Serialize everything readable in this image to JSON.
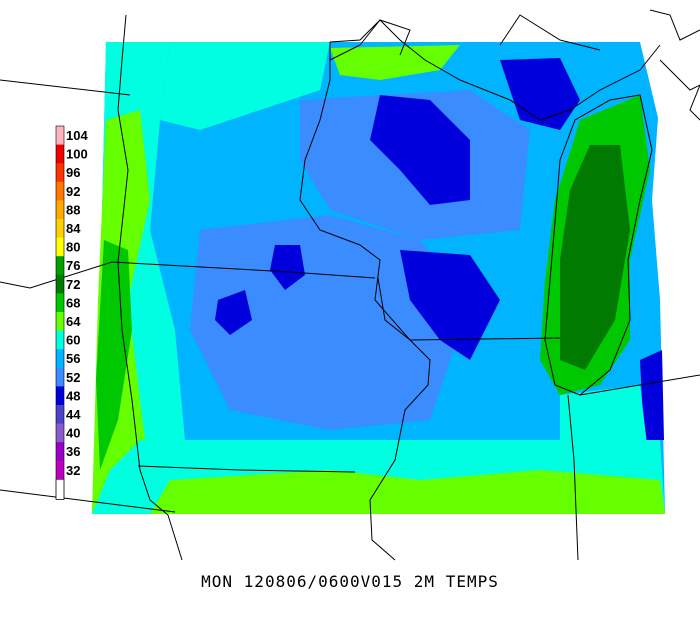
{
  "caption": "MON 120806/0600V015 2M TEMPS",
  "legend": {
    "levels": [
      {
        "label": "104",
        "color": "#ffb3c1"
      },
      {
        "label": "100",
        "color": "#ee0000"
      },
      {
        "label": "96",
        "color": "#ff3300"
      },
      {
        "label": "92",
        "color": "#ff7700"
      },
      {
        "label": "88",
        "color": "#ffaa00"
      },
      {
        "label": "84",
        "color": "#ffd000"
      },
      {
        "label": "80",
        "color": "#ffff00"
      },
      {
        "label": "76",
        "color": "#00a000"
      },
      {
        "label": "72",
        "color": "#007a00"
      },
      {
        "label": "68",
        "color": "#00c800"
      },
      {
        "label": "64",
        "color": "#66ff00"
      },
      {
        "label": "60",
        "color": "#00ffe0"
      },
      {
        "label": "56",
        "color": "#00b4ff"
      },
      {
        "label": "52",
        "color": "#3a8cff"
      },
      {
        "label": "48",
        "color": "#0000dd"
      },
      {
        "label": "44",
        "color": "#4a44cc"
      },
      {
        "label": "40",
        "color": "#8a5ad0"
      },
      {
        "label": "36",
        "color": "#9a00c8"
      },
      {
        "label": "32",
        "color": "#c000c0"
      }
    ],
    "bottom_color": "#ffffff"
  },
  "colors": {
    "cyan": "#00ffe0",
    "light_blue": "#00b4ff",
    "mid_blue": "#3a8cff",
    "dark_blue": "#0000dd",
    "lime": "#66ff00",
    "green": "#00c800",
    "dark_green": "#007a00",
    "border_line": "#000000"
  }
}
